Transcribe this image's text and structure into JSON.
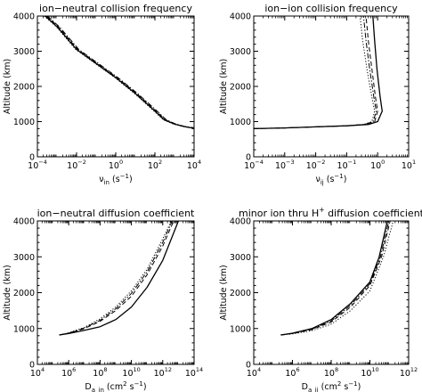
{
  "chart_data": [
    {
      "type": "line",
      "title": "ion−neutral collision frequency",
      "xlabel_main": "ν",
      "xlabel_sub": "in",
      "xlabel_rest": " (s",
      "xlabel_unit_exp": "−1",
      "xlabel_close": ")",
      "ylabel": "Altitude (km)",
      "xscale": "log",
      "xlim_exp": [
        -4,
        4
      ],
      "ylim": [
        0,
        4000
      ],
      "xtick_exps": [
        -4,
        -2,
        0,
        2,
        4
      ],
      "xtick_labels": [
        "10",
        "10",
        "10",
        "10",
        "10"
      ],
      "xtick_sups": [
        "−4",
        "−2",
        "0",
        "2",
        "4"
      ],
      "yticks": [
        0,
        1000,
        2000,
        3000,
        4000
      ],
      "ytick_labels": [
        "0",
        "1000",
        "2000",
        "3000",
        "4000"
      ],
      "series": [
        {
          "style": "solid",
          "points": [
            [
              0.00025,
              4000
            ],
            [
              0.001,
              3700
            ],
            [
              0.01,
              3050
            ],
            [
              0.1,
              2650
            ],
            [
              1,
              2250
            ],
            [
              10,
              1800
            ],
            [
              100,
              1300
            ],
            [
              300,
              1050
            ],
            [
              1000,
              930
            ],
            [
              3000,
              860
            ],
            [
              10000,
              810
            ]
          ]
        },
        {
          "style": "dashed",
          "points": [
            [
              0.00029,
              4000
            ],
            [
              0.00115,
              3700
            ],
            [
              0.0115,
              3050
            ],
            [
              0.115,
              2650
            ],
            [
              1.15,
              2250
            ],
            [
              11.5,
              1800
            ],
            [
              115,
              1300
            ],
            [
              340,
              1050
            ],
            [
              1100,
              930
            ],
            [
              3200,
              860
            ],
            [
              10000,
              820
            ]
          ]
        },
        {
          "style": "dotted",
          "points": [
            [
              0.00022,
              4000
            ],
            [
              0.0009,
              3700
            ],
            [
              0.009,
              3050
            ],
            [
              0.09,
              2650
            ],
            [
              0.9,
              2250
            ],
            [
              9,
              1800
            ],
            [
              90,
              1300
            ],
            [
              270,
              1050
            ],
            [
              900,
              930
            ],
            [
              2800,
              860
            ],
            [
              9500,
              810
            ]
          ]
        },
        {
          "style": "dashdot",
          "points": [
            [
              0.00032,
              4000
            ],
            [
              0.0013,
              3700
            ],
            [
              0.013,
              3050
            ],
            [
              0.13,
              2650
            ],
            [
              1.3,
              2250
            ],
            [
              13,
              1800
            ],
            [
              130,
              1300
            ],
            [
              380,
              1050
            ],
            [
              1200,
              930
            ],
            [
              3400,
              860
            ],
            [
              10000,
              825
            ]
          ]
        }
      ]
    },
    {
      "type": "line",
      "title": "ion−ion collision frequency",
      "xlabel_main": "ν",
      "xlabel_sub": "ij",
      "xlabel_rest": " (s",
      "xlabel_unit_exp": "−1",
      "xlabel_close": ")",
      "ylabel": "Altitude (km)",
      "xscale": "log",
      "xlim_exp": [
        -4,
        1
      ],
      "ylim": [
        0,
        4000
      ],
      "xtick_exps": [
        -4,
        -3,
        -2,
        -1,
        0,
        1
      ],
      "xtick_labels": [
        "10",
        "10",
        "10",
        "10",
        "10",
        "10"
      ],
      "xtick_sups": [
        "−4",
        "−3",
        "−2",
        "−1",
        "0",
        "1"
      ],
      "yticks": [
        0,
        1000,
        2000,
        3000,
        4000
      ],
      "ytick_labels": [
        "0",
        "1000",
        "2000",
        "3000",
        "4000"
      ],
      "series": [
        {
          "style": "solid",
          "points": [
            [
              0.0001,
              800
            ],
            [
              0.001,
              820
            ],
            [
              0.01,
              850
            ],
            [
              0.1,
              880
            ],
            [
              0.5,
              920
            ],
            [
              1,
              1000
            ],
            [
              1.4,
              1300
            ],
            [
              1.2,
              1700
            ],
            [
              0.95,
              2500
            ],
            [
              0.8,
              3300
            ],
            [
              0.7,
              4000
            ]
          ]
        },
        {
          "style": "dashed",
          "points": [
            [
              0.0001,
              800
            ],
            [
              0.001,
              820
            ],
            [
              0.01,
              850
            ],
            [
              0.1,
              880
            ],
            [
              0.4,
              920
            ],
            [
              0.8,
              1000
            ],
            [
              1.0,
              1300
            ],
            [
              0.85,
              1700
            ],
            [
              0.65,
              2500
            ],
            [
              0.5,
              3300
            ],
            [
              0.42,
              4000
            ]
          ]
        },
        {
          "style": "dotted",
          "points": [
            [
              0.0001,
              800
            ],
            [
              0.001,
              820
            ],
            [
              0.01,
              850
            ],
            [
              0.1,
              880
            ],
            [
              0.35,
              920
            ],
            [
              0.65,
              1000
            ],
            [
              0.8,
              1300
            ],
            [
              0.65,
              1700
            ],
            [
              0.45,
              2500
            ],
            [
              0.33,
              3300
            ],
            [
              0.27,
              4000
            ]
          ]
        },
        {
          "style": "dashdot",
          "points": [
            [
              0.0001,
              800
            ],
            [
              0.001,
              820
            ],
            [
              0.01,
              850
            ],
            [
              0.1,
              880
            ],
            [
              0.38,
              920
            ],
            [
              0.72,
              1000
            ],
            [
              0.9,
              1300
            ],
            [
              0.75,
              1700
            ],
            [
              0.55,
              2500
            ],
            [
              0.42,
              3300
            ],
            [
              0.35,
              4000
            ]
          ]
        }
      ]
    },
    {
      "type": "line",
      "title": "ion−neutral diffusion coefficient",
      "xlabel_main": "D",
      "xlabel_sub": "a_in",
      "xlabel_rest": " (cm",
      "xlabel_unit_exp": "2",
      "xlabel_close": " s",
      "xlabel_close_exp": "−1",
      "xlabel_end": ")",
      "ylabel": "Altitude (km)",
      "xscale": "log",
      "xlim_exp": [
        4,
        14
      ],
      "ylim": [
        0,
        4000
      ],
      "xtick_exps": [
        4,
        6,
        8,
        10,
        12,
        14
      ],
      "xtick_labels": [
        "10",
        "10",
        "10",
        "10",
        "10",
        "10"
      ],
      "xtick_sups": [
        "4",
        "6",
        "8",
        "10",
        "12",
        "14"
      ],
      "yticks": [
        0,
        1000,
        2000,
        3000,
        4000
      ],
      "ytick_labels": [
        "0",
        "1000",
        "2000",
        "3000",
        "4000"
      ],
      "series": [
        {
          "style": "solid",
          "points": [
            [
              250000.0,
              820
            ],
            [
              1000000.0,
              860
            ],
            [
              10000000.0,
              950
            ],
            [
              100000000.0,
              1050
            ],
            [
              1000000000.0,
              1250
            ],
            [
              10000000000.0,
              1600
            ],
            [
              100000000000.0,
              2150
            ],
            [
              1000000000000.0,
              2900
            ],
            [
              10000000000000.0,
              4000
            ]
          ]
        },
        {
          "style": "dashed",
          "points": [
            [
              250000.0,
              820
            ],
            [
              1000000.0,
              870
            ],
            [
              10000000.0,
              1000
            ],
            [
              100000000.0,
              1200
            ],
            [
              1000000000.0,
              1500
            ],
            [
              10000000000.0,
              1900
            ],
            [
              100000000000.0,
              2500
            ],
            [
              1000000000000.0,
              3300
            ],
            [
              5000000000000.0,
              4000
            ]
          ]
        },
        {
          "style": "dotted",
          "points": [
            [
              250000.0,
              820
            ],
            [
              1000000.0,
              880
            ],
            [
              10000000.0,
              1030
            ],
            [
              100000000.0,
              1270
            ],
            [
              1000000000.0,
              1600
            ],
            [
              10000000000.0,
              2050
            ],
            [
              100000000000.0,
              2650
            ],
            [
              1000000000000.0,
              3500
            ],
            [
              3500000000000.0,
              4000
            ]
          ]
        },
        {
          "style": "dashdot",
          "points": [
            [
              250000.0,
              820
            ],
            [
              1000000.0,
              875
            ],
            [
              10000000.0,
              1015
            ],
            [
              100000000.0,
              1230
            ],
            [
              1000000000.0,
              1550
            ],
            [
              10000000000.0,
              1980
            ],
            [
              100000000000.0,
              2580
            ],
            [
              1000000000000.0,
              3400
            ],
            [
              4000000000000.0,
              4000
            ]
          ]
        }
      ]
    },
    {
      "type": "line",
      "title": "minor ion thru H",
      "title_sup": "+",
      "title_rest": " diffusion coefficient",
      "xlabel_main": "D",
      "xlabel_sub": "a_ij",
      "xlabel_rest": " (cm",
      "xlabel_unit_exp": "2",
      "xlabel_close": " s",
      "xlabel_close_exp": "−1",
      "xlabel_end": ")",
      "ylabel": "Altitude (km)",
      "xscale": "log",
      "xlim_exp": [
        4,
        12
      ],
      "ylim": [
        0,
        4000
      ],
      "xtick_exps": [
        4,
        6,
        8,
        10,
        12
      ],
      "xtick_labels": [
        "10",
        "10",
        "10",
        "10",
        "10"
      ],
      "xtick_sups": [
        "4",
        "6",
        "8",
        "10",
        "12"
      ],
      "yticks": [
        0,
        1000,
        2000,
        3000,
        4000
      ],
      "ytick_labels": [
        "0",
        "1000",
        "2000",
        "3000",
        "4000"
      ],
      "series": [
        {
          "style": "solid",
          "points": [
            [
              250000.0,
              820
            ],
            [
              1000000.0,
              870
            ],
            [
              10000000.0,
              1000
            ],
            [
              100000000.0,
              1250
            ],
            [
              1000000000.0,
              1700
            ],
            [
              10000000000.0,
              2300
            ],
            [
              30000000000.0,
              3000
            ],
            [
              80000000000.0,
              4000
            ]
          ]
        },
        {
          "style": "dashed",
          "points": [
            [
              250000.0,
              820
            ],
            [
              1000000.0,
              860
            ],
            [
              10000000.0,
              970
            ],
            [
              100000000.0,
              1180
            ],
            [
              1000000000.0,
              1600
            ],
            [
              10000000000.0,
              2200
            ],
            [
              40000000000.0,
              3000
            ],
            [
              110000000000.0,
              4000
            ]
          ]
        },
        {
          "style": "dotted",
          "points": [
            [
              250000.0,
              820
            ],
            [
              1000000.0,
              850
            ],
            [
              10000000.0,
              940
            ],
            [
              100000000.0,
              1120
            ],
            [
              1000000000.0,
              1500
            ],
            [
              10000000000.0,
              2050
            ],
            [
              50000000000.0,
              3000
            ],
            [
              160000000000.0,
              4000
            ]
          ]
        },
        {
          "style": "dashdot",
          "points": [
            [
              250000.0,
              820
            ],
            [
              1000000.0,
              865
            ],
            [
              10000000.0,
              985
            ],
            [
              100000000.0,
              1210
            ],
            [
              1000000000.0,
              1650
            ],
            [
              10000000000.0,
              2250
            ],
            [
              35000000000.0,
              3000
            ],
            [
              95000000000.0,
              4000
            ]
          ]
        }
      ]
    }
  ]
}
